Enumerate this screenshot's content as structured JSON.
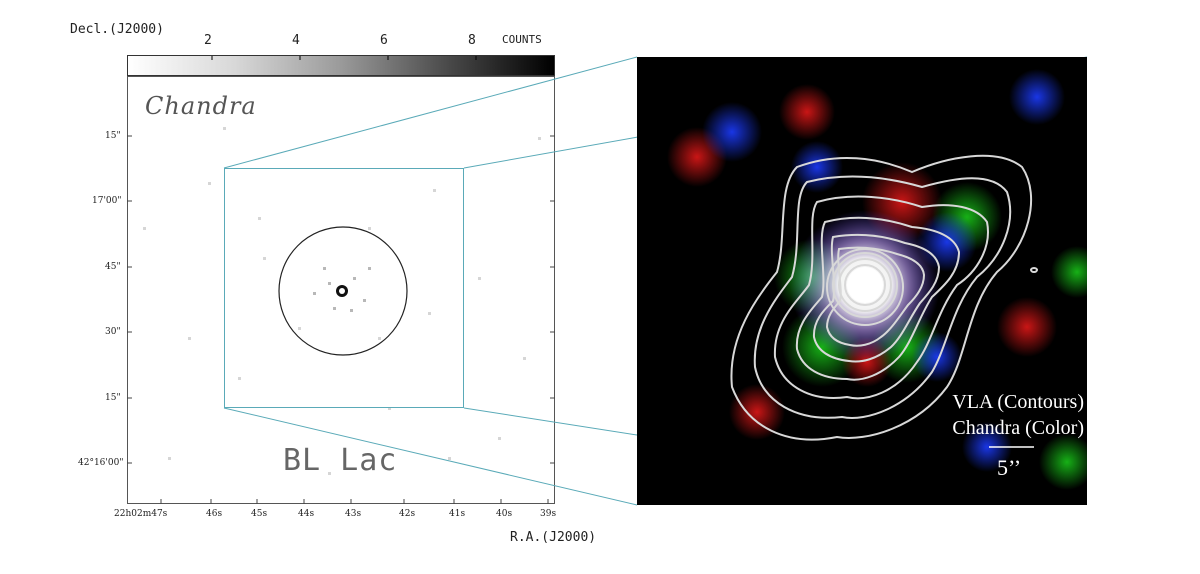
{
  "figure": {
    "dec_axis_title": "Decl.(J2000)",
    "ra_axis_title": "R.A.(J2000)",
    "colorbar": {
      "ticks": [
        "2",
        "4",
        "6",
        "8"
      ],
      "unit_label": "COUNTS"
    },
    "dec_ticks": [
      "15\"",
      "17'00\"",
      "45\"",
      "30\"",
      "15\"",
      "42°16'00\""
    ],
    "ra_ticks": [
      "22h02m47s",
      "46s",
      "45s",
      "44s",
      "43s",
      "42s",
      "41s",
      "40s",
      "39s"
    ],
    "left_panel_label": "Chandra",
    "target_label": "BL Lac",
    "right_panel": {
      "line1": "VLA (Contours)",
      "line2": "Chandra (Color)",
      "scale_bar": "5’’"
    }
  }
}
